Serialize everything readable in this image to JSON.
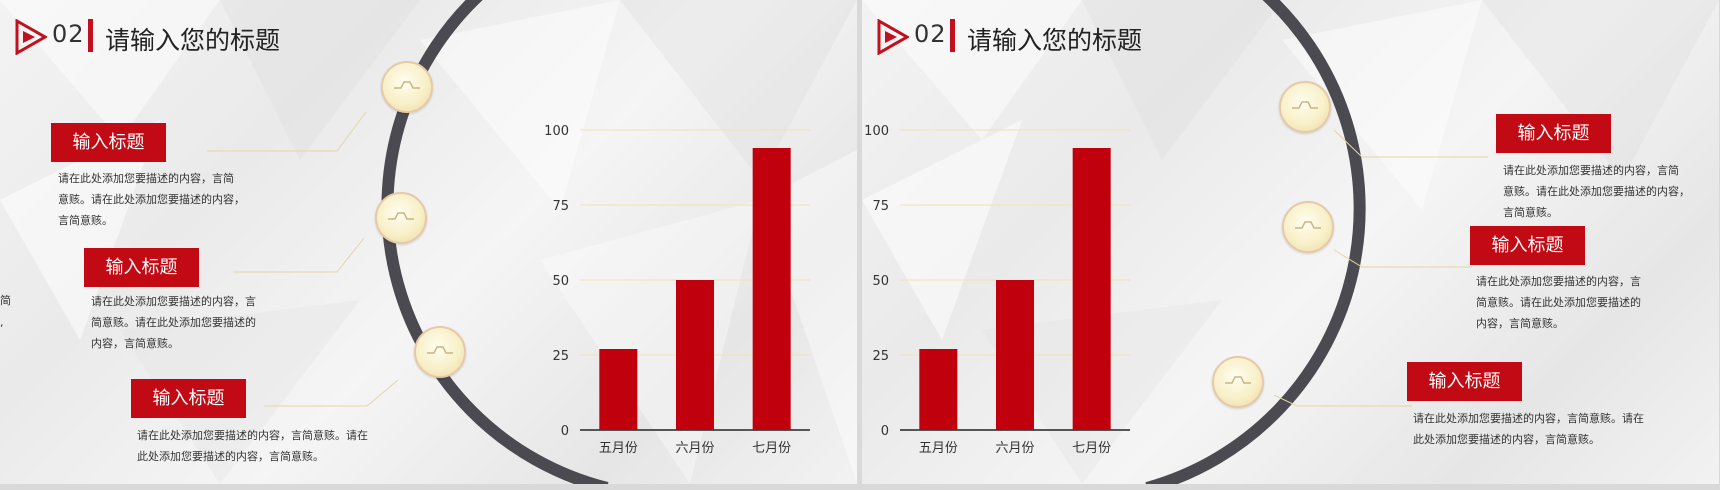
{
  "slides": [
    {
      "section_number": "02",
      "title": "请输入您的标题",
      "items": [
        {
          "label": "输入标题",
          "desc_lines": [
            "请在此处添加您要描述的内容，言简",
            "意赅。请在此处添加您要描述的内容，",
            "言简意赅。"
          ]
        },
        {
          "label": "输入标题",
          "desc_lines": [
            "请在此处添加您要描述的内容，言",
            "简意赅。请在此处添加您要描述的",
            "内容，言简意赅。"
          ]
        },
        {
          "label": "输入标题",
          "desc_lines": [
            "请在此处添加您要描述的内容，言简意赅。请在",
            "此处添加您要描述的内容，言简意赅。"
          ]
        }
      ],
      "edge_fragments": [
        "简",
        ","
      ]
    },
    {
      "section_number": "02",
      "title": "请输入您的标题",
      "items": [
        {
          "label": "输入标题",
          "desc_lines": [
            "请在此处添加您要描述的内容，言简",
            "意赅。请在此处添加您要描述的内容，",
            "言简意赅。"
          ]
        },
        {
          "label": "输入标题",
          "desc_lines": [
            "请在此处添加您要描述的内容，言",
            "简意赅。请在此处添加您要描述的",
            "内容，言简意赅。"
          ]
        },
        {
          "label": "输入标题",
          "desc_lines": [
            "请在此处添加您要描述的内容，言简意赅。请在",
            "此处添加您要描述的内容，言简意赅。"
          ]
        }
      ]
    }
  ],
  "chart_data": [
    {
      "type": "bar",
      "categories": [
        "五月份",
        "六月份",
        "七月份"
      ],
      "values": [
        27,
        50,
        94
      ],
      "yticks": [
        0,
        25,
        50,
        75,
        100
      ],
      "ylim": [
        0,
        100
      ],
      "grid": true,
      "bar_color": "#c0000c",
      "grid_color": "#efe3b4"
    },
    {
      "type": "bar",
      "categories": [
        "五月份",
        "六月份",
        "七月份"
      ],
      "values": [
        27,
        50,
        94
      ],
      "yticks": [
        0,
        25,
        50,
        75,
        100
      ],
      "ylim": [
        0,
        100
      ],
      "grid": true,
      "bar_color": "#c0000c",
      "grid_color": "#efe3b4"
    }
  ],
  "colors": {
    "accent": "#c10a14",
    "arc": "#4b4a50",
    "connector": "#e3d6a4"
  }
}
